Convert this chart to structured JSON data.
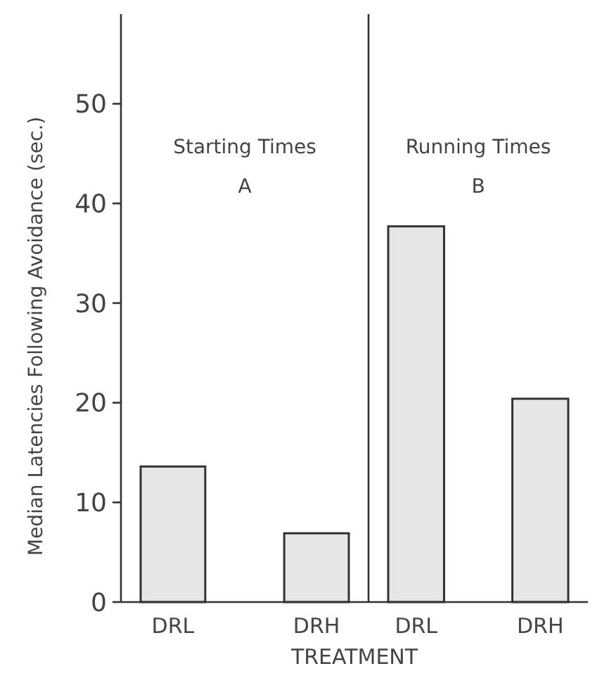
{
  "chart_data": [
    {
      "type": "bar",
      "title": "Starting Times",
      "subtitle": "A",
      "ylabel": "Median Latencies Following Avoidance (sec.)",
      "xlabel": "TREATMENT",
      "categories": [
        "DRL",
        "DRH"
      ],
      "values": [
        13.6,
        6.9
      ],
      "color": "#e6e6e6",
      "ylim": [
        0,
        59
      ],
      "yticks": [
        0,
        10,
        20,
        30,
        40,
        50
      ],
      "grid": false
    },
    {
      "type": "bar",
      "title": "Running Times",
      "subtitle": "B",
      "categories": [
        "DRL",
        "DRH"
      ],
      "values": [
        37.7,
        20.4
      ],
      "color": "#e6e6e6",
      "ylim": [
        0,
        59
      ],
      "tick_labels": "x",
      "grid": false
    }
  ]
}
